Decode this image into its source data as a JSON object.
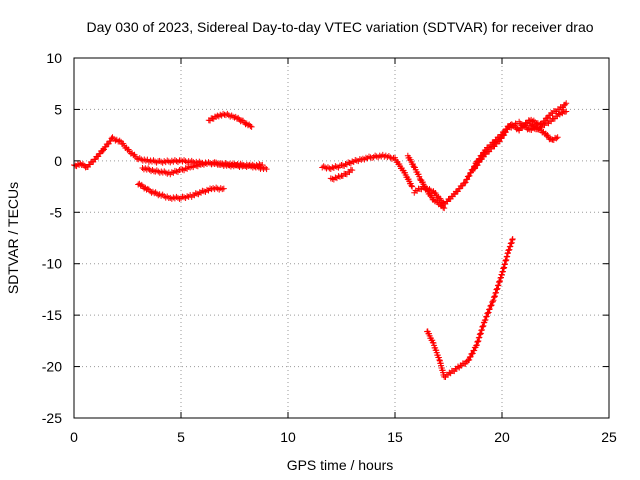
{
  "chart_data": {
    "type": "scatter",
    "title": "Day 030 of 2023, Sidereal Day-to-day VTEC variation (SDTVAR) for receiver drao",
    "xlabel": "GPS time / hours",
    "ylabel": "SDTVAR / TECUs",
    "xlim": [
      0,
      25
    ],
    "ylim": [
      -25,
      10
    ],
    "xticks": [
      "0",
      "5",
      "10",
      "15",
      "20",
      "25"
    ],
    "yticks": [
      "-25",
      "-20",
      "-15",
      "-10",
      "-5",
      "0",
      "5",
      "10"
    ],
    "grid": true,
    "marker": "plus",
    "color": "#ff0000",
    "series": [
      {
        "x": [
          0,
          0.3,
          0.6,
          1.0,
          1.4,
          1.8,
          2.2,
          2.6,
          3.0,
          3.5,
          4.0,
          5.0,
          6.0,
          7.0,
          8.0,
          9.0
        ],
        "y": [
          -0.5,
          -0.3,
          -0.6,
          0.2,
          1.2,
          2.2,
          1.8,
          0.9,
          0.2,
          0.0,
          -0.1,
          0.0,
          -0.2,
          -0.3,
          -0.4,
          -0.8
        ]
      },
      {
        "x": [
          3.2,
          3.8,
          4.5,
          5.0,
          5.5,
          6.0,
          6.5,
          7.0,
          7.6,
          8.2,
          8.8
        ],
        "y": [
          -0.7,
          -1.0,
          -1.2,
          -0.9,
          -0.6,
          -0.3,
          -0.2,
          -0.4,
          -0.5,
          -0.5,
          -0.4
        ]
      },
      {
        "x": [
          3.0,
          3.5,
          4.0,
          4.5,
          5.0,
          5.5,
          6.0,
          6.5,
          7.0
        ],
        "y": [
          -2.2,
          -2.9,
          -3.3,
          -3.6,
          -3.6,
          -3.4,
          -3.0,
          -2.7,
          -2.7
        ]
      },
      {
        "x": [
          6.3,
          6.7,
          7.1,
          7.5,
          7.9,
          8.3
        ],
        "y": [
          3.9,
          4.4,
          4.5,
          4.3,
          3.8,
          3.3
        ]
      },
      {
        "x": [
          11.6,
          12.0,
          12.5,
          13.0,
          13.5,
          14.0,
          14.5,
          15.0,
          15.4,
          15.8
        ],
        "y": [
          -0.6,
          -0.7,
          -0.5,
          -0.1,
          0.2,
          0.4,
          0.5,
          0.2,
          -1.0,
          -2.5
        ]
      },
      {
        "x": [
          12.0,
          12.5,
          13.0
        ],
        "y": [
          -1.8,
          -1.5,
          -0.9
        ]
      },
      {
        "x": [
          15.6,
          15.9,
          16.2,
          16.5,
          16.8,
          17.1,
          17.3
        ],
        "y": [
          0.5,
          -0.6,
          -1.8,
          -2.9,
          -3.8,
          -4.2,
          -4.6
        ]
      },
      {
        "x": [
          15.9,
          16.3,
          16.8,
          17.3,
          17.8,
          18.3,
          18.8,
          19.2,
          19.6,
          20.0,
          20.4,
          20.8
        ],
        "y": [
          -3.0,
          -2.6,
          -3.0,
          -4.2,
          -3.2,
          -2.0,
          -0.2,
          1.0,
          1.8,
          2.6,
          3.6,
          3.0
        ]
      },
      {
        "x": [
          18.7,
          19.1,
          19.5,
          19.9,
          20.3,
          20.7
        ],
        "y": [
          -0.8,
          0.4,
          1.2,
          2.0,
          3.2,
          3.6
        ]
      },
      {
        "x": [
          20.8,
          21.3,
          21.8,
          22.3,
          22.8,
          23.0
        ],
        "y": [
          3.0,
          4.0,
          3.5,
          4.6,
          5.2,
          5.6
        ]
      },
      {
        "x": [
          20.8,
          21.3,
          21.8,
          22.3,
          22.7,
          23.0
        ],
        "y": [
          3.7,
          3.0,
          3.3,
          3.9,
          4.6,
          4.8
        ]
      },
      {
        "x": [
          21.3,
          21.7,
          22.0,
          22.3,
          22.6
        ],
        "y": [
          3.6,
          3.1,
          2.7,
          2.0,
          2.3
        ]
      },
      {
        "x": [
          16.5,
          16.8,
          17.1,
          17.3,
          17.6,
          18.0,
          18.4,
          18.8,
          19.2,
          19.6,
          20.0,
          20.3,
          20.5
        ],
        "y": [
          -16.5,
          -17.8,
          -19.5,
          -21.0,
          -20.6,
          -20.0,
          -19.5,
          -18.0,
          -15.5,
          -13.5,
          -11.0,
          -8.8,
          -7.6
        ]
      }
    ]
  }
}
